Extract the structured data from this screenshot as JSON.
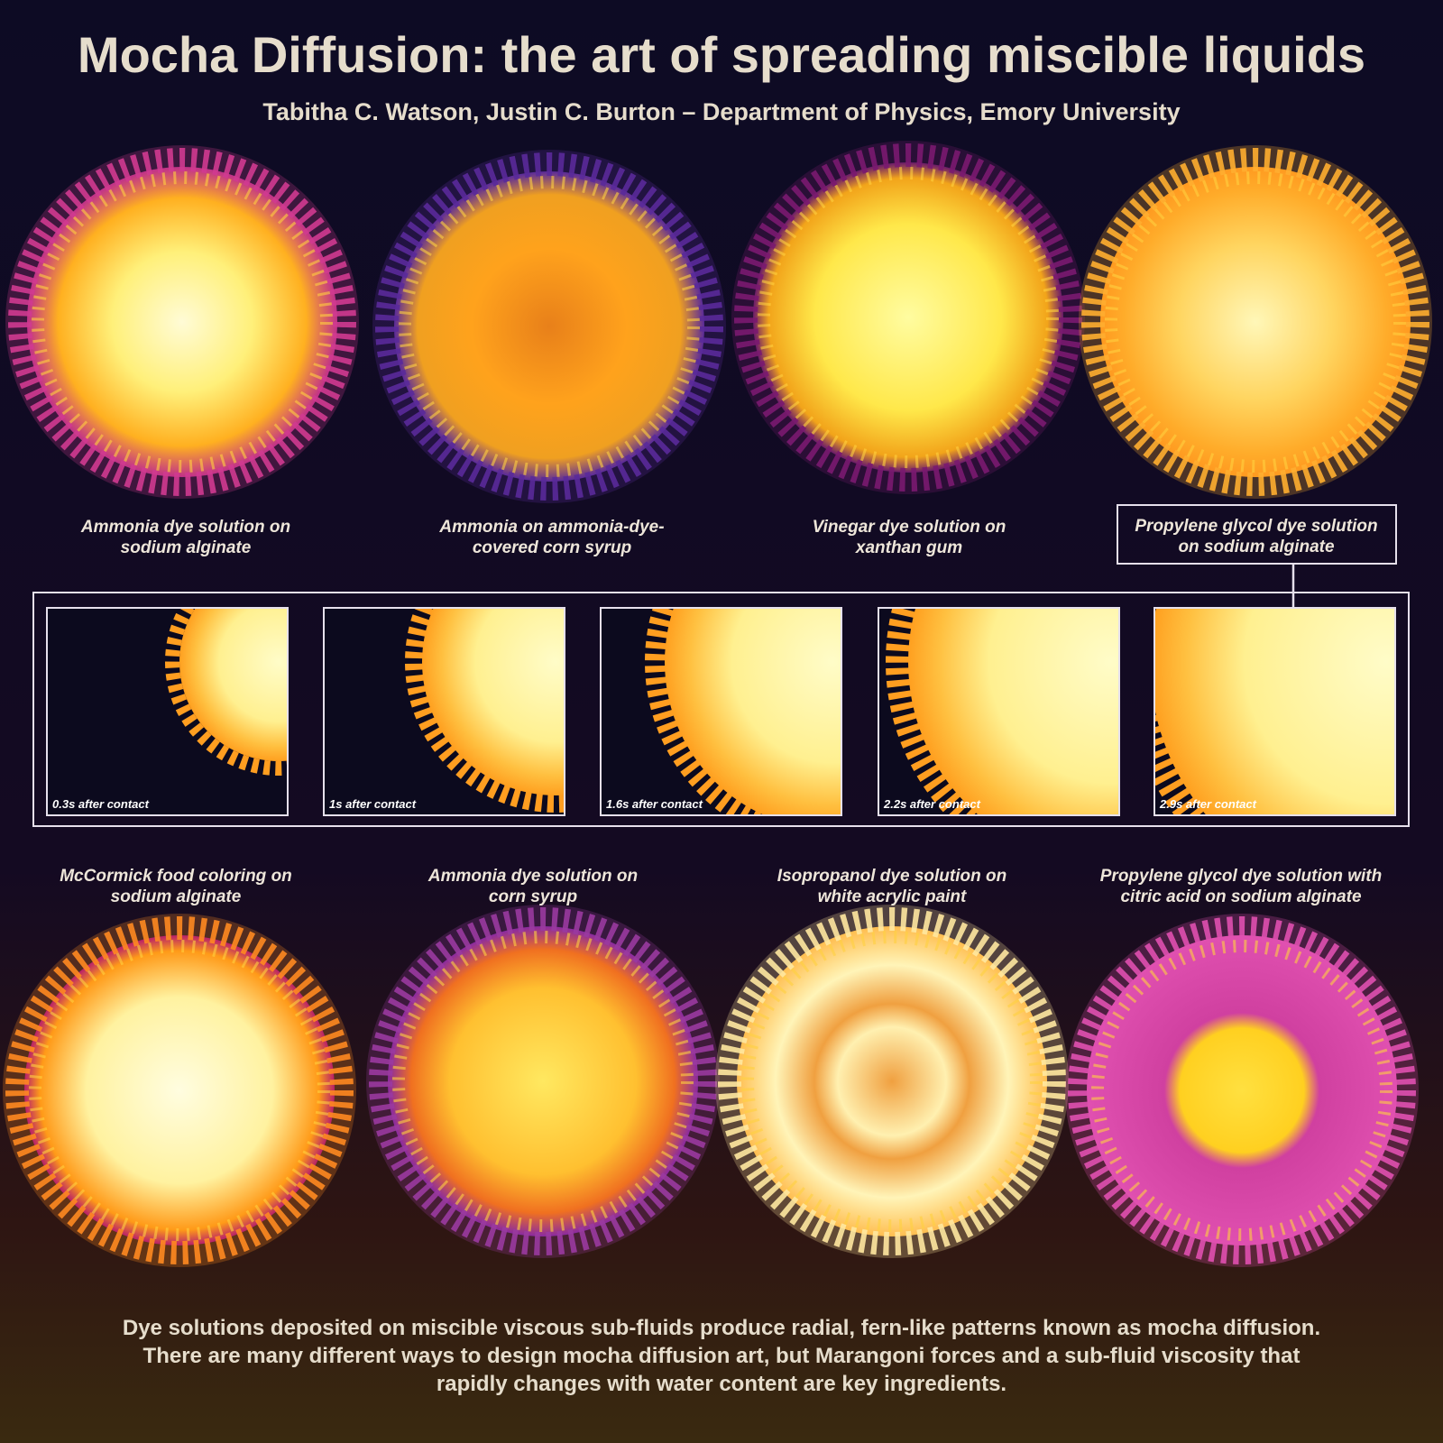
{
  "header": {
    "title": "Mocha Diffusion: the art of spreading miscible liquids",
    "authors": "Tabitha C. Watson, Justin C. Burton – Department of Physics, Emory University"
  },
  "top_row": [
    {
      "lines": [
        "Ammonia dye solution on",
        "sodium alginate"
      ]
    },
    {
      "lines": [
        "Ammonia on ammonia-dye-",
        "covered corn syrup"
      ]
    },
    {
      "lines": [
        "Vinegar dye solution on",
        "xanthan gum"
      ]
    },
    {
      "lines": [
        "Propylene glycol dye solution",
        "on sodium alginate"
      ]
    }
  ],
  "timeline": [
    {
      "label": "0.3s after contact"
    },
    {
      "label": "1s after contact"
    },
    {
      "label": "1.6s after contact"
    },
    {
      "label": "2.2s after contact"
    },
    {
      "label": "2.9s after contact"
    }
  ],
  "bottom_row": [
    {
      "lines": [
        "McCormick food coloring on",
        "sodium alginate"
      ]
    },
    {
      "lines": [
        "Ammonia dye solution on",
        "corn syrup"
      ]
    },
    {
      "lines": [
        "Isopropanol dye solution on",
        "white acrylic paint"
      ]
    },
    {
      "lines": [
        "Propylene glycol dye solution with",
        "citric acid on sodium alginate"
      ]
    }
  ],
  "footer": {
    "lines": [
      "Dye solutions deposited on miscible viscous sub-fluids produce radial, fern-like patterns known as mocha diffusion.",
      "There are many different ways to design mocha diffusion art, but Marangoni forces and a sub-fluid viscosity that",
      "rapidly changes with water content are key ingredients."
    ]
  }
}
